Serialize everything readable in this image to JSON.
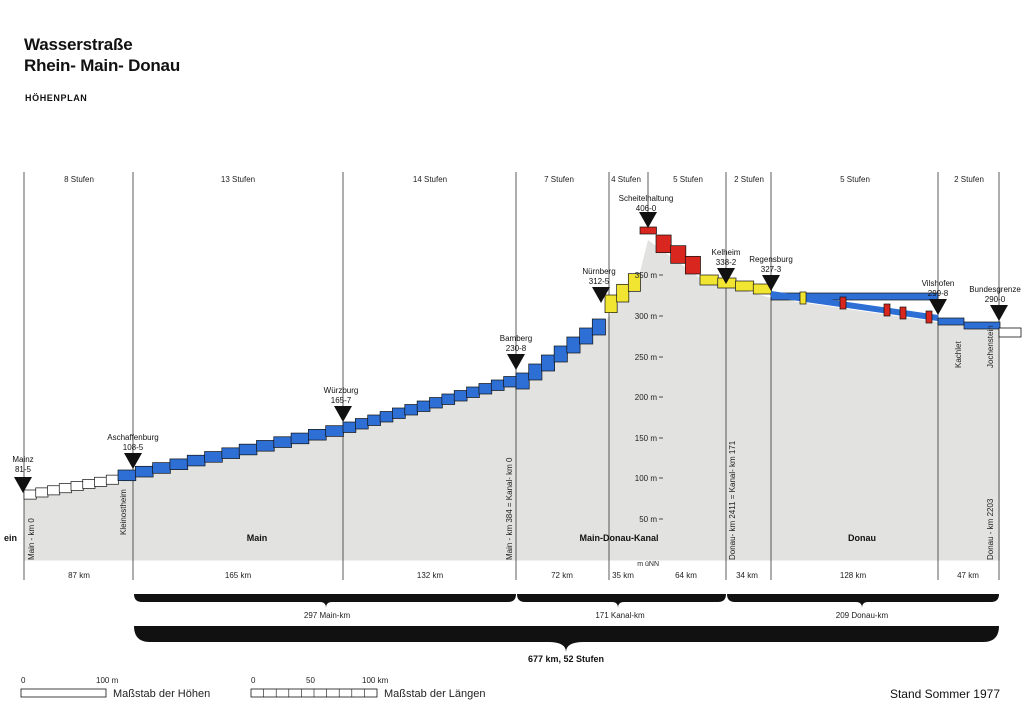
{
  "header": {
    "title_line1": "Wasserstraße",
    "title_line2": "Rhein- Main- Donau",
    "subtitle": "HÖHENPLAN"
  },
  "colors": {
    "main_steps": "#2e6fd6",
    "kanal_low": "#f2e531",
    "kanal_high": "#d9261e",
    "donau": "#2e6fd6",
    "donau_locks": "#d9261e",
    "ground": "#e2e2e0",
    "outline": "#111111"
  },
  "sections": [
    {
      "steps": "8 Stufen",
      "length": "87 km"
    },
    {
      "steps": "13 Stufen",
      "length": "165 km"
    },
    {
      "steps": "14 Stufen",
      "length": "132 km"
    },
    {
      "steps": "7 Stufen",
      "length": "72 km"
    },
    {
      "steps": "4 Stufen",
      "length": "35 km"
    },
    {
      "steps": "5 Stufen",
      "length": "64 km"
    },
    {
      "steps": "2 Stufen",
      "length": "34 km"
    },
    {
      "steps": "5 Stufen",
      "length": "128 km"
    },
    {
      "steps": "2 Stufen",
      "length": "47 km"
    }
  ],
  "places": [
    {
      "name": "Mainz",
      "elev": "81-5"
    },
    {
      "name": "Aschaffenburg",
      "elev": "108-5"
    },
    {
      "name": "Würzburg",
      "elev": "165-7"
    },
    {
      "name": "Bamberg",
      "elev": "230-8"
    },
    {
      "name": "Nürnberg",
      "elev": "312-5"
    },
    {
      "name": "Scheitelhaltung",
      "elev": "406-0"
    },
    {
      "name": "Kelheim",
      "elev": "338-2"
    },
    {
      "name": "Regensburg",
      "elev": "327-3"
    },
    {
      "name": "Vilshofen",
      "elev": "299-8"
    },
    {
      "name": "Bundesgrenze",
      "elev": "290-0"
    }
  ],
  "axis": {
    "ticks": [
      "350 m",
      "300 m",
      "250 m",
      "200 m",
      "150 m",
      "100 m",
      "50 m"
    ],
    "unit": "m üNN"
  },
  "vertical_labels": {
    "main_km0": "Main - km 0",
    "kleinostheim": "Kleinostheim",
    "main384": "Main - km 384 = Kanal- km 0",
    "donau2411": "Donau- km 2411 = Kanal- km 171",
    "kachlet": "Kachlet",
    "jochenstein": "Jochenstein",
    "donau2203": "Donau - km 2203"
  },
  "rivers": {
    "rhein_fragment": "ein",
    "main": "Main",
    "kanal": "Main-Donau-Kanal",
    "donau": "Donau"
  },
  "totals": {
    "main_km": "297 Main-km",
    "kanal_km": "171 Kanal-km",
    "donau_km": "209 Donau-km",
    "overall": "677 km, 52 Stufen"
  },
  "legend": {
    "height_zero": "0",
    "height_100": "100 m",
    "height_label": "Maßstab der Höhen",
    "length_zero": "0",
    "length_50": "50",
    "length_100": "100 km",
    "length_label": "Maßstab der Längen",
    "stand": "Stand Sommer 1977"
  }
}
